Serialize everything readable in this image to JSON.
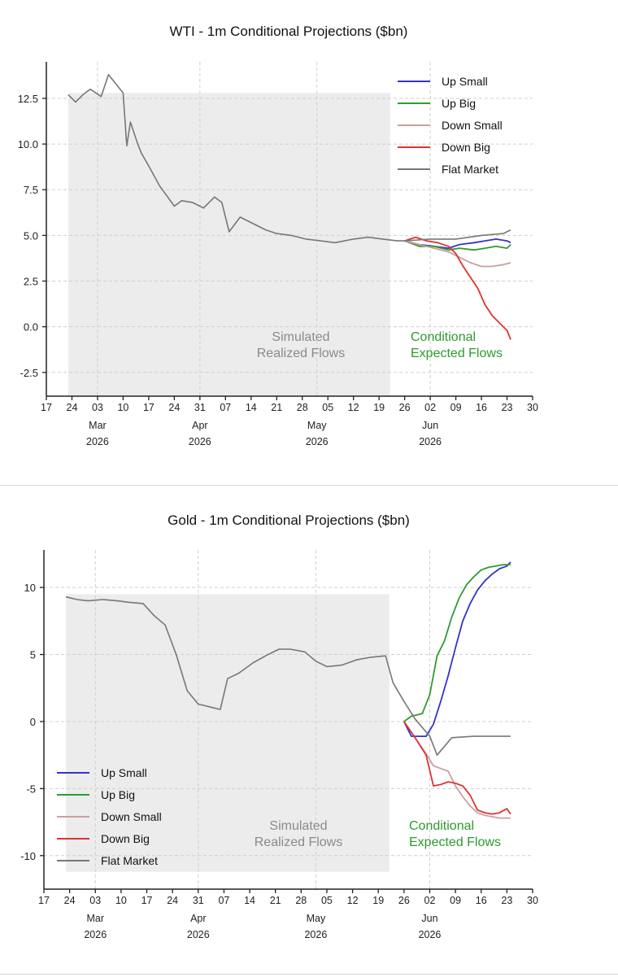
{
  "chart_data": [
    {
      "type": "line",
      "title": "WTI - 1m Conditional Projections ($bn)",
      "xlabel": "",
      "ylabel": "",
      "ylim": [
        -3.8,
        14.5
      ],
      "y_ticks": [
        12.5,
        10.0,
        7.5,
        5.0,
        2.5,
        0.0,
        -2.5
      ],
      "y_tick_labels": [
        "12.5",
        "10.0",
        "7.5",
        "5.0",
        "2.5",
        "0.0",
        "-2.5"
      ],
      "x_start": "2026-02-17",
      "x_end": "2026-06-30",
      "x_tick_labels": [
        "17",
        "24",
        "03",
        "10",
        "17",
        "24",
        "31",
        "07",
        "14",
        "21",
        "28",
        "05",
        "12",
        "19",
        "26",
        "02",
        "09",
        "16",
        "23",
        "30"
      ],
      "month_labels": [
        {
          "month": "Mar",
          "year": "2026",
          "date": "2026-03-03"
        },
        {
          "month": "Apr",
          "year": "2026",
          "date": "2026-03-31"
        },
        {
          "month": "May",
          "year": "2026",
          "date": "2026-05-02"
        },
        {
          "month": "Jun",
          "year": "2026",
          "date": "2026-06-02"
        }
      ],
      "grid": true,
      "legend_position": "top-right",
      "annotations": {
        "realized": [
          "Simulated",
          "Realized Flows"
        ],
        "expected": [
          "Conditional",
          "Expected Flows"
        ]
      },
      "series": [
        {
          "name": "Up Small",
          "color": "#3333cc",
          "x": [
            "2026-05-26",
            "2026-05-30",
            "2026-06-03",
            "2026-06-07",
            "2026-06-10",
            "2026-06-14",
            "2026-06-17",
            "2026-06-20",
            "2026-06-23",
            "2026-06-24"
          ],
          "values": [
            4.7,
            4.5,
            4.4,
            4.3,
            4.5,
            4.6,
            4.7,
            4.8,
            4.7,
            4.6
          ]
        },
        {
          "name": "Up Big",
          "color": "#339933",
          "x": [
            "2026-05-26",
            "2026-05-30",
            "2026-06-03",
            "2026-06-07",
            "2026-06-10",
            "2026-06-14",
            "2026-06-17",
            "2026-06-20",
            "2026-06-23",
            "2026-06-24"
          ],
          "values": [
            4.7,
            4.4,
            4.4,
            4.2,
            4.3,
            4.2,
            4.3,
            4.4,
            4.3,
            4.5
          ]
        },
        {
          "name": "Down Small",
          "color": "#c9a0a0",
          "x": [
            "2026-05-26",
            "2026-05-30",
            "2026-06-03",
            "2026-06-07",
            "2026-06-10",
            "2026-06-13",
            "2026-06-16",
            "2026-06-19",
            "2026-06-22",
            "2026-06-24"
          ],
          "values": [
            4.7,
            4.5,
            4.3,
            4.1,
            3.8,
            3.5,
            3.3,
            3.3,
            3.4,
            3.5
          ]
        },
        {
          "name": "Down Big",
          "color": "#dd3333",
          "x": [
            "2026-05-26",
            "2026-05-29",
            "2026-06-01",
            "2026-06-04",
            "2026-06-07",
            "2026-06-09",
            "2026-06-11",
            "2026-06-13",
            "2026-06-15",
            "2026-06-17",
            "2026-06-19",
            "2026-06-21",
            "2026-06-23",
            "2026-06-24"
          ],
          "values": [
            4.7,
            4.9,
            4.7,
            4.6,
            4.4,
            4.0,
            3.3,
            2.7,
            2.1,
            1.2,
            0.6,
            0.2,
            -0.2,
            -0.7
          ]
        },
        {
          "name": "Flat Market",
          "color": "#777777",
          "x": [
            "2026-02-23",
            "2026-02-25",
            "2026-02-27",
            "2026-03-01",
            "2026-03-04",
            "2026-03-06",
            "2026-03-08",
            "2026-03-10",
            "2026-03-11",
            "2026-03-12",
            "2026-03-14",
            "2026-03-15",
            "2026-03-17",
            "2026-03-20",
            "2026-03-24",
            "2026-03-26",
            "2026-03-29",
            "2026-04-01",
            "2026-04-04",
            "2026-04-06",
            "2026-04-08",
            "2026-04-11",
            "2026-04-14",
            "2026-04-18",
            "2026-04-21",
            "2026-04-25",
            "2026-04-29",
            "2026-05-03",
            "2026-05-07",
            "2026-05-12",
            "2026-05-16",
            "2026-05-20",
            "2026-05-24",
            "2026-05-26",
            "2026-06-02",
            "2026-06-09",
            "2026-06-16",
            "2026-06-22",
            "2026-06-24"
          ],
          "values": [
            12.7,
            12.3,
            12.7,
            13.0,
            12.6,
            13.8,
            13.3,
            12.8,
            9.9,
            11.2,
            10.0,
            9.5,
            8.8,
            7.7,
            6.6,
            6.9,
            6.8,
            6.5,
            7.1,
            6.8,
            5.2,
            6.0,
            5.7,
            5.3,
            5.1,
            5.0,
            4.8,
            4.7,
            4.6,
            4.8,
            4.9,
            4.8,
            4.7,
            4.7,
            4.8,
            4.8,
            5.0,
            5.1,
            5.3
          ]
        }
      ]
    },
    {
      "type": "line",
      "title": "Gold - 1m Conditional Projections ($bn)",
      "xlabel": "",
      "ylabel": "",
      "ylim": [
        -12.5,
        12.8
      ],
      "y_ticks": [
        10,
        5,
        0,
        -5,
        -10
      ],
      "y_tick_labels": [
        "10",
        "5",
        "0",
        "-5",
        "-10"
      ],
      "x_start": "2026-02-17",
      "x_end": "2026-06-30",
      "x_tick_labels": [
        "17",
        "24",
        "03",
        "10",
        "17",
        "24",
        "31",
        "07",
        "14",
        "21",
        "28",
        "05",
        "12",
        "19",
        "26",
        "02",
        "09",
        "16",
        "23",
        "30"
      ],
      "month_labels": [
        {
          "month": "Mar",
          "year": "2026",
          "date": "2026-03-03"
        },
        {
          "month": "Apr",
          "year": "2026",
          "date": "2026-03-31"
        },
        {
          "month": "May",
          "year": "2026",
          "date": "2026-05-02"
        },
        {
          "month": "Jun",
          "year": "2026",
          "date": "2026-06-02"
        }
      ],
      "grid": true,
      "legend_position": "bottom-left",
      "annotations": {
        "realized": [
          "Simulated",
          "Realized Flows"
        ],
        "expected": [
          "Conditional",
          "Expected Flows"
        ]
      },
      "series": [
        {
          "name": "Up Small",
          "color": "#3333cc",
          "x": [
            "2026-05-26",
            "2026-05-28",
            "2026-06-01",
            "2026-06-03",
            "2026-06-05",
            "2026-06-07",
            "2026-06-09",
            "2026-06-11",
            "2026-06-13",
            "2026-06-15",
            "2026-06-17",
            "2026-06-19",
            "2026-06-21",
            "2026-06-23",
            "2026-06-24"
          ],
          "values": [
            0.0,
            -1.1,
            -1.1,
            -0.2,
            1.5,
            3.4,
            5.5,
            7.5,
            8.8,
            9.8,
            10.5,
            11.0,
            11.4,
            11.6,
            11.9
          ]
        },
        {
          "name": "Up Big",
          "color": "#339933",
          "x": [
            "2026-05-26",
            "2026-05-28",
            "2026-05-31",
            "2026-06-02",
            "2026-06-04",
            "2026-06-06",
            "2026-06-08",
            "2026-06-10",
            "2026-06-12",
            "2026-06-14",
            "2026-06-16",
            "2026-06-18",
            "2026-06-20",
            "2026-06-22",
            "2026-06-24"
          ],
          "values": [
            0.0,
            0.4,
            0.6,
            2.0,
            4.9,
            6.0,
            7.8,
            9.2,
            10.2,
            10.8,
            11.3,
            11.5,
            11.6,
            11.7,
            11.7
          ]
        },
        {
          "name": "Down Small",
          "color": "#c9a0a0",
          "x": [
            "2026-05-26",
            "2026-05-29",
            "2026-06-01",
            "2026-06-03",
            "2026-06-05",
            "2026-06-07",
            "2026-06-09",
            "2026-06-11",
            "2026-06-13",
            "2026-06-15",
            "2026-06-17",
            "2026-06-19",
            "2026-06-21",
            "2026-06-24"
          ],
          "values": [
            0.0,
            -1.2,
            -2.4,
            -3.3,
            -3.5,
            -3.7,
            -4.8,
            -5.6,
            -6.3,
            -6.8,
            -7.0,
            -7.1,
            -7.2,
            -7.2
          ]
        },
        {
          "name": "Down Big",
          "color": "#dd3333",
          "x": [
            "2026-05-26",
            "2026-05-29",
            "2026-06-01",
            "2026-06-03",
            "2026-06-05",
            "2026-06-07",
            "2026-06-09",
            "2026-06-11",
            "2026-06-13",
            "2026-06-15",
            "2026-06-17",
            "2026-06-19",
            "2026-06-21",
            "2026-06-23",
            "2026-06-24"
          ],
          "values": [
            0.0,
            -1.2,
            -2.5,
            -4.8,
            -4.7,
            -4.5,
            -4.6,
            -4.8,
            -5.5,
            -6.6,
            -6.8,
            -6.9,
            -6.8,
            -6.5,
            -6.9
          ]
        },
        {
          "name": "Flat Market",
          "color": "#777777",
          "x": [
            "2026-02-23",
            "2026-02-26",
            "2026-03-01",
            "2026-03-05",
            "2026-03-09",
            "2026-03-12",
            "2026-03-16",
            "2026-03-19",
            "2026-03-22",
            "2026-03-25",
            "2026-03-28",
            "2026-03-31",
            "2026-04-03",
            "2026-04-06",
            "2026-04-08",
            "2026-04-11",
            "2026-04-15",
            "2026-04-19",
            "2026-04-22",
            "2026-04-25",
            "2026-04-29",
            "2026-05-02",
            "2026-05-05",
            "2026-05-09",
            "2026-05-13",
            "2026-05-17",
            "2026-05-21",
            "2026-05-23",
            "2026-05-26",
            "2026-05-29",
            "2026-06-02",
            "2026-06-04",
            "2026-06-08",
            "2026-06-14",
            "2026-06-20",
            "2026-06-24"
          ],
          "values": [
            9.3,
            9.1,
            9.0,
            9.1,
            9.0,
            8.9,
            8.8,
            7.9,
            7.2,
            5.0,
            2.3,
            1.3,
            1.1,
            0.9,
            3.2,
            3.6,
            4.4,
            5.0,
            5.4,
            5.4,
            5.2,
            4.5,
            4.1,
            4.2,
            4.6,
            4.8,
            4.9,
            2.9,
            1.5,
            0.2,
            -1.1,
            -2.5,
            -1.2,
            -1.1,
            -1.1,
            -1.1
          ]
        }
      ]
    }
  ]
}
